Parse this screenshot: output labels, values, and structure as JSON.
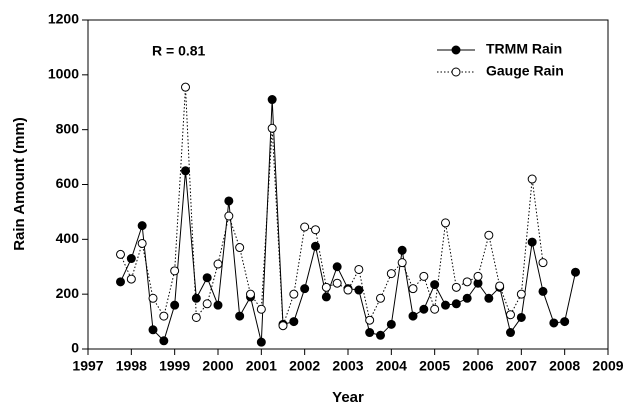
{
  "chart_data": {
    "type": "line",
    "xlabel": "Year",
    "ylabel": "Rain Amount (mm)",
    "annotation": "R = 0.81",
    "x": [
      1997.75,
      1998,
      1998.25,
      1998.5,
      1998.75,
      1999,
      1999.25,
      1999.5,
      1999.75,
      2000,
      2000.25,
      2000.5,
      2000.75,
      2001,
      2001.25,
      2001.5,
      2001.75,
      2002,
      2002.25,
      2002.5,
      2002.75,
      2003,
      2003.25,
      2003.5,
      2003.75,
      2004,
      2004.25,
      2004.5,
      2004.75,
      2005,
      2005.25,
      2005.5,
      2005.75,
      2006,
      2006.25,
      2006.5,
      2006.75,
      2007,
      2007.25,
      2007.5,
      2007.75,
      2008,
      2008.25
    ],
    "series": [
      {
        "name": "TRMM Rain",
        "color": "#000000",
        "marker": "filled",
        "line": "solid",
        "values": [
          245,
          330,
          450,
          70,
          30,
          160,
          650,
          185,
          260,
          160,
          540,
          120,
          190,
          25,
          910,
          90,
          100,
          220,
          375,
          190,
          300,
          220,
          215,
          60,
          50,
          90,
          360,
          120,
          145,
          235,
          160,
          165,
          185,
          240,
          185,
          225,
          60,
          115,
          390,
          210,
          95,
          100,
          280
        ]
      },
      {
        "name": "Gauge Rain",
        "color": "#000000",
        "marker": "open",
        "line": "dotted",
        "values": [
          345,
          255,
          385,
          185,
          120,
          285,
          955,
          115,
          165,
          310,
          485,
          370,
          200,
          145,
          805,
          85,
          200,
          445,
          435,
          225,
          240,
          215,
          290,
          105,
          185,
          275,
          315,
          220,
          265,
          145,
          460,
          225,
          245,
          265,
          415,
          230,
          125,
          200,
          620,
          315,
          null,
          null,
          null
        ]
      }
    ],
    "xlim": [
      1997,
      2009
    ],
    "xticks": [
      1997,
      1998,
      1999,
      2000,
      2001,
      2002,
      2003,
      2004,
      2005,
      2006,
      2007,
      2008,
      2009
    ],
    "ylim": [
      0,
      1200
    ],
    "yticks": [
      0,
      200,
      400,
      600,
      800,
      1000,
      1200
    ],
    "legend": "upper right",
    "grid": false
  }
}
